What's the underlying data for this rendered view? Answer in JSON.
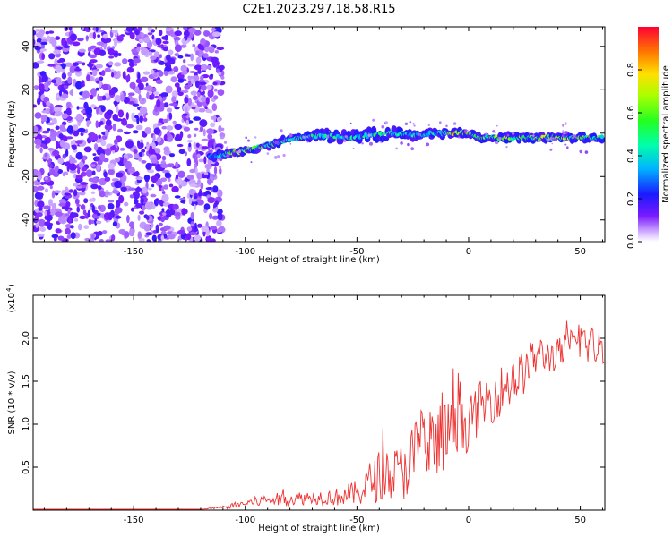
{
  "title": "C2E1.2023.297.18.58.R15",
  "chart_data": [
    {
      "type": "heatmap",
      "xlabel": "Height of straight line (km)",
      "ylabel": "Frequency (Hz)",
      "xlim": [
        -195,
        61
      ],
      "ylim": [
        -50,
        49
      ],
      "xticks": [
        -150,
        -100,
        -50,
        0,
        50
      ],
      "yticks": [
        -40,
        -20,
        0,
        20,
        40
      ],
      "colorbar": {
        "label": "Normalized spectral amplitude",
        "range": [
          0.0,
          1.0
        ],
        "ticks": [
          0.0,
          0.2,
          0.4,
          0.6,
          0.8
        ]
      },
      "noise_region_x": [
        -195,
        -110
      ],
      "ridge": {
        "x": [
          -115,
          -105,
          -95,
          -85,
          -75,
          -65,
          -55,
          -45,
          -35,
          -25,
          -15,
          -5,
          0,
          5,
          15,
          25,
          35,
          45,
          55,
          60
        ],
        "y": [
          -11,
          -9,
          -7,
          -4,
          -2,
          -1,
          -2,
          -1,
          0,
          -1,
          0,
          0,
          0,
          -2,
          -2,
          -2,
          -2,
          -2,
          -2,
          -2
        ],
        "peak_amplitude": [
          0.3,
          0.7,
          0.6,
          0.6,
          0.5,
          0.5,
          0.5,
          0.5,
          0.6,
          0.5,
          0.5,
          0.9,
          0.9,
          0.6,
          0.7,
          0.7,
          0.7,
          0.7,
          0.7,
          0.7
        ]
      },
      "grid": false
    },
    {
      "type": "line",
      "xlabel": "Height of straight line (km)",
      "ylabel": "SNR (10 * v/v)",
      "yunit": "(x10",
      "yunit_exp": "4",
      "xlim": [
        -195,
        61
      ],
      "ylim": [
        0,
        2.5
      ],
      "xticks": [
        -150,
        -100,
        -50,
        0,
        50
      ],
      "yticks": [
        0.5,
        1.0,
        1.5,
        2.0
      ],
      "ytick_labels": [
        "0.5",
        "1.0",
        "1.5",
        "2.0"
      ],
      "series": [
        {
          "color": "#ee3333",
          "x": [
            -195,
            -180,
            -160,
            -140,
            -120,
            -110,
            -100,
            -90,
            -80,
            -70,
            -60,
            -50,
            -45,
            -40,
            -35,
            -30,
            -25,
            -20,
            -15,
            -10,
            -5,
            0,
            5,
            10,
            15,
            20,
            25,
            30,
            35,
            40,
            45,
            50,
            55,
            60
          ],
          "values": [
            0.01,
            0.01,
            0.01,
            0.01,
            0.01,
            0.03,
            0.08,
            0.12,
            0.13,
            0.15,
            0.15,
            0.2,
            0.3,
            0.4,
            0.4,
            0.45,
            0.6,
            0.7,
            0.7,
            0.9,
            0.9,
            1.0,
            1.2,
            1.3,
            1.4,
            1.5,
            1.6,
            1.8,
            1.8,
            1.8,
            1.9,
            2.0,
            1.9,
            1.9
          ],
          "noise_amplitude": [
            0.0,
            0.0,
            0.0,
            0.0,
            0.0,
            0.02,
            0.05,
            0.07,
            0.08,
            0.08,
            0.1,
            0.15,
            0.25,
            0.3,
            0.3,
            0.35,
            0.45,
            0.5,
            0.55,
            0.4,
            0.35,
            0.3,
            0.3,
            0.3,
            0.3,
            0.3,
            0.25,
            0.25,
            0.2,
            0.2,
            0.2,
            0.25,
            0.25,
            0.2
          ]
        }
      ],
      "grid": false
    }
  ]
}
